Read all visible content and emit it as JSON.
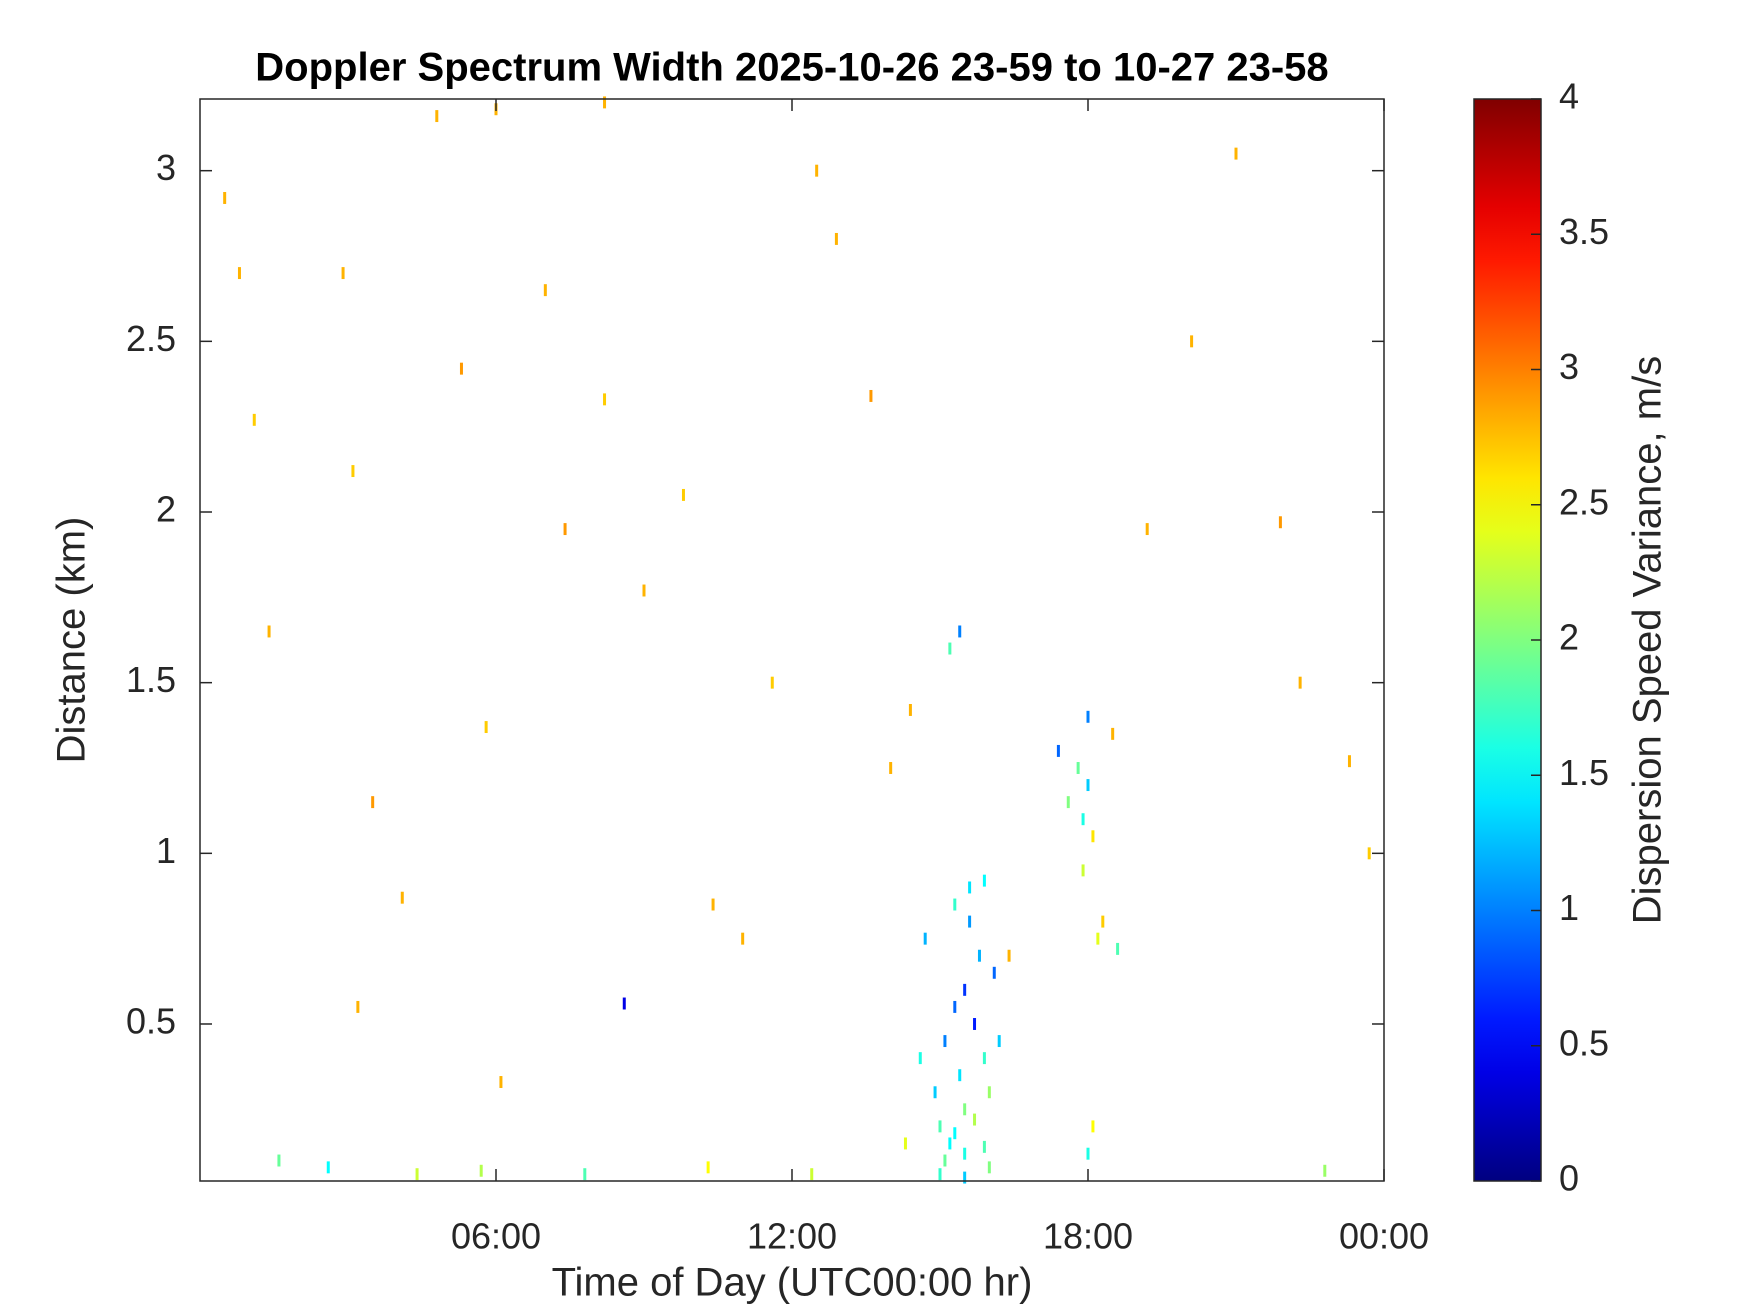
{
  "chart_data": {
    "type": "heatmap",
    "title": "Doppler Spectrum Width 2025-10-26 23-59 to 10-27 23-58",
    "x_label": "Time of Day (UTC00:00 hr)",
    "y_label": "Distance (km)",
    "colorbar_label": "Dispersion Speed Variance, m/s",
    "colormap": "jet",
    "clim": [
      0,
      4
    ],
    "cticks": [
      0,
      0.5,
      1,
      1.5,
      2,
      2.5,
      3,
      3.5,
      4
    ],
    "xlim": [
      0,
      24
    ],
    "xticks": [
      {
        "value": 6,
        "label": "06:00"
      },
      {
        "value": 12,
        "label": "12:00"
      },
      {
        "value": 18,
        "label": "18:00"
      },
      {
        "value": 24,
        "label": "00:00"
      }
    ],
    "ylim": [
      0.04,
      3.21
    ],
    "yticks": [
      0.5,
      1,
      1.5,
      2,
      2.5,
      3
    ],
    "cells": {
      "x": [
        0.5,
        0.8,
        1.1,
        1.4,
        2.9,
        3.1,
        3.5,
        4.1,
        4.8,
        5.3,
        5.8,
        6.0,
        6.1,
        7.0,
        7.4,
        8.2,
        8.2,
        8.6,
        9.0,
        9.8,
        10.4,
        11.0,
        11.6,
        12.5,
        12.9,
        13.6,
        14.0,
        14.4,
        14.6,
        14.9,
        15.0,
        15.1,
        15.2,
        15.3,
        15.4,
        15.5,
        15.5,
        15.6,
        15.7,
        15.8,
        15.9,
        16.0,
        16.1,
        16.2,
        15.1,
        15.3,
        15.5,
        15.7,
        15.9,
        15.6,
        15.4,
        15.2,
        17.4,
        17.6,
        17.8,
        17.9,
        18.0,
        18.1,
        18.3,
        18.5,
        17.9,
        18.0,
        18.2,
        18.6,
        19.2,
        20.1,
        21.0,
        21.9,
        22.3,
        23.3,
        23.7,
        1.6,
        2.6,
        4.4,
        5.7,
        7.8,
        10.3,
        14.3,
        15.0,
        15.5,
        16.0,
        18.0,
        22.8,
        3.2,
        12.4,
        14.7,
        15.3,
        15.9,
        16.4,
        18.1
      ],
      "y": [
        2.92,
        2.7,
        2.27,
        1.65,
        2.7,
        2.12,
        1.15,
        0.87,
        3.16,
        2.42,
        1.37,
        3.18,
        0.33,
        2.65,
        1.95,
        3.2,
        2.33,
        0.56,
        1.77,
        2.05,
        0.85,
        0.75,
        1.5,
        3.0,
        2.8,
        2.34,
        1.25,
        1.42,
        0.4,
        0.3,
        0.2,
        0.45,
        0.15,
        0.55,
        0.35,
        0.6,
        0.25,
        0.8,
        0.5,
        0.7,
        0.4,
        0.3,
        0.65,
        0.45,
        0.1,
        0.18,
        0.12,
        0.22,
        0.14,
        0.9,
        1.65,
        1.6,
        1.3,
        1.15,
        1.25,
        1.1,
        1.2,
        1.05,
        0.8,
        1.35,
        0.95,
        1.4,
        0.75,
        0.72,
        1.95,
        2.5,
        3.05,
        1.97,
        1.5,
        1.27,
        1.0,
        0.1,
        0.08,
        0.06,
        0.07,
        0.06,
        0.08,
        0.15,
        0.06,
        0.05,
        0.08,
        0.12,
        0.07,
        0.55,
        0.06,
        0.75,
        0.85,
        0.92,
        0.7,
        0.2
      ],
      "values": [
        2.8,
        2.8,
        2.7,
        2.8,
        2.8,
        2.7,
        2.9,
        2.8,
        2.8,
        2.9,
        2.7,
        2.8,
        2.8,
        2.8,
        2.9,
        2.8,
        2.7,
        0.4,
        2.8,
        2.7,
        2.8,
        2.8,
        2.7,
        2.8,
        2.8,
        2.9,
        2.8,
        2.8,
        1.6,
        1.3,
        1.8,
        1.0,
        1.5,
        0.9,
        1.4,
        0.7,
        2.0,
        1.1,
        0.6,
        1.2,
        1.7,
        2.1,
        0.9,
        1.3,
        1.9,
        1.5,
        1.6,
        2.2,
        1.8,
        1.4,
        1.0,
        1.8,
        0.9,
        2.0,
        1.9,
        1.6,
        1.3,
        2.6,
        2.7,
        2.8,
        2.3,
        1.0,
        2.4,
        1.8,
        2.8,
        2.8,
        2.8,
        2.9,
        2.8,
        2.8,
        2.7,
        1.9,
        1.5,
        2.3,
        2.2,
        1.8,
        2.5,
        2.4,
        1.7,
        1.3,
        2.0,
        1.6,
        2.1,
        2.8,
        2.3,
        1.2,
        1.7,
        1.5,
        2.8,
        2.5
      ]
    }
  }
}
